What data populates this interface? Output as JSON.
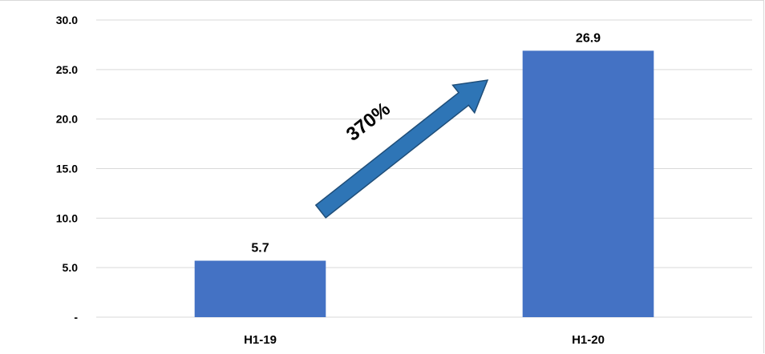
{
  "chart_data": {
    "type": "bar",
    "categories": [
      "H1-19",
      "H1-20"
    ],
    "values": [
      5.7,
      26.9
    ],
    "data_labels": [
      "5.7",
      "26.9"
    ],
    "y_ticks": [
      0,
      5,
      10,
      15,
      20,
      25,
      30
    ],
    "y_tick_labels": [
      "-",
      "5.0",
      "10.0",
      "15.0",
      "20.0",
      "25.0",
      "30.0"
    ],
    "ylim": [
      0,
      30
    ],
    "grid": true,
    "bar_color": "#4472c4",
    "grid_color": "#d9d9d9",
    "annotation": {
      "text": "370%",
      "shape": "arrow",
      "color": "#2e75b6",
      "outline_color": "#1f4e79"
    }
  }
}
